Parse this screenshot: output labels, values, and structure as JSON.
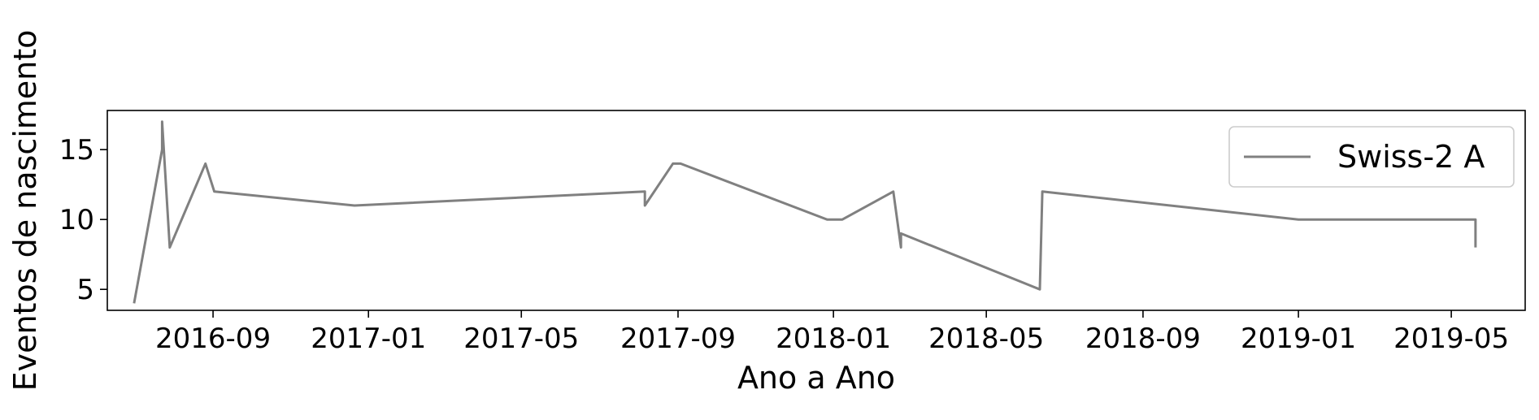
{
  "chart_data": {
    "type": "line",
    "title": "",
    "xlabel": "Ano a Ano",
    "ylabel": "Eventos de nascimento",
    "x_tick_labels": [
      "2016-09",
      "2017-01",
      "2017-05",
      "2017-09",
      "2018-01",
      "2018-05",
      "2018-09",
      "2019-01",
      "2019-05"
    ],
    "x_tick_dates": [
      "2016-09-01",
      "2017-01-01",
      "2017-05-01",
      "2017-09-01",
      "2018-01-01",
      "2018-05-01",
      "2018-09-01",
      "2019-01-01",
      "2019-05-01"
    ],
    "y_ticks": [
      5,
      10,
      15
    ],
    "y_tick_labels": [
      "5",
      "10",
      "15"
    ],
    "xlim": [
      "2016-06-10",
      "2019-06-28"
    ],
    "ylim": [
      3.5,
      17.8
    ],
    "grid": false,
    "legend_position": "top-right",
    "series": [
      {
        "name": "Swiss-2 A",
        "color": "#808080",
        "points": [
          {
            "x": "2016-07-01",
            "y": 4
          },
          {
            "x": "2016-07-23",
            "y": 15
          },
          {
            "x": "2016-07-23",
            "y": 17
          },
          {
            "x": "2016-07-29",
            "y": 8
          },
          {
            "x": "2016-08-26",
            "y": 14
          },
          {
            "x": "2016-09-02",
            "y": 12
          },
          {
            "x": "2016-12-21",
            "y": 11
          },
          {
            "x": "2017-08-06",
            "y": 12
          },
          {
            "x": "2017-08-06",
            "y": 11
          },
          {
            "x": "2017-08-28",
            "y": 14
          },
          {
            "x": "2017-09-03",
            "y": 14
          },
          {
            "x": "2017-12-27",
            "y": 10
          },
          {
            "x": "2018-01-08",
            "y": 10
          },
          {
            "x": "2018-02-17",
            "y": 12
          },
          {
            "x": "2018-02-23",
            "y": 8
          },
          {
            "x": "2018-02-23",
            "y": 9
          },
          {
            "x": "2018-06-12",
            "y": 5
          },
          {
            "x": "2018-06-14",
            "y": 12
          },
          {
            "x": "2019-01-01",
            "y": 10
          },
          {
            "x": "2019-05-20",
            "y": 10
          },
          {
            "x": "2019-05-20",
            "y": 8
          }
        ]
      }
    ]
  }
}
